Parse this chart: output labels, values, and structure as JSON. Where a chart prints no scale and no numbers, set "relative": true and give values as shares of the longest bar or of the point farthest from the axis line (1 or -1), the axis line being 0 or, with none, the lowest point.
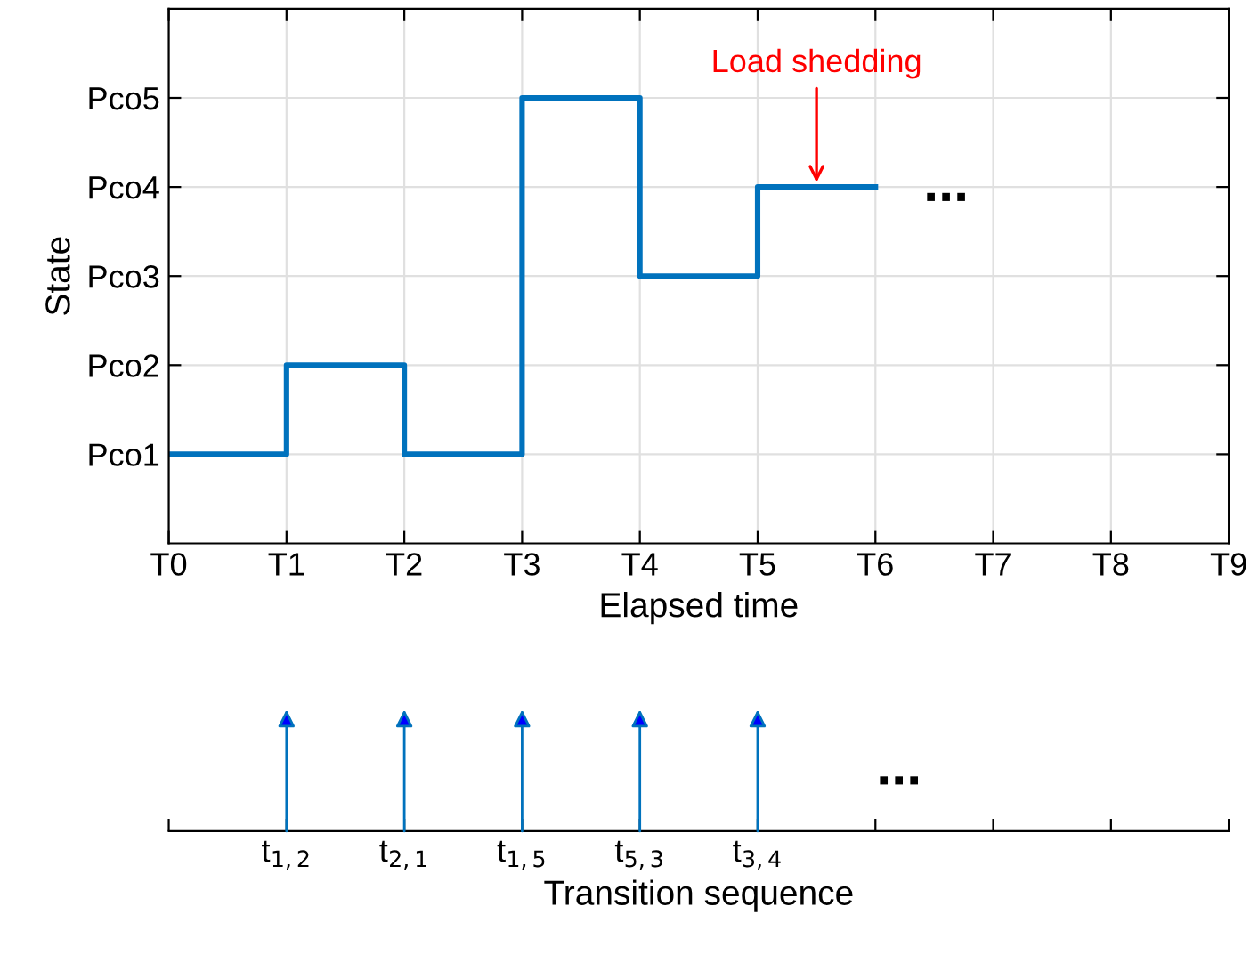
{
  "chart_data": [
    {
      "type": "step",
      "xlabel": "Elapsed time",
      "ylabel": "State",
      "categories": [
        "T0",
        "T1",
        "T2",
        "T3",
        "T4",
        "T5",
        "T6",
        "T7",
        "T8",
        "T9"
      ],
      "series": [
        {
          "color": "#0072bd",
          "values": [
            0.2,
            0.4,
            0.2,
            1,
            0.6,
            0.8,
            0.8,
            null,
            null,
            null
          ]
        }
      ],
      "relative": true,
      "grid": true,
      "annotations": [
        "Pco1",
        "Pco2",
        "Pco3",
        "Pco4",
        "Pco5",
        "Load shedding",
        "..."
      ]
    },
    {
      "type": "other",
      "xlabel": "Transition sequence",
      "categories": [
        null,
        "t$_{1,2}$",
        "t$_{2,1}$",
        "t$_{1,5}$",
        "t$_{5,3}$",
        "t$_{3,4}$",
        null,
        null,
        null,
        null
      ],
      "annotations": [
        "..."
      ]
    }
  ]
}
